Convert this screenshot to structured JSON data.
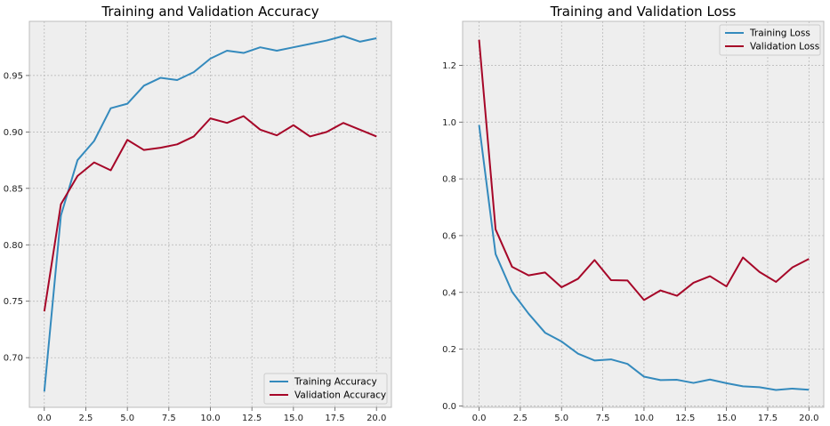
{
  "chart_data": [
    {
      "type": "line",
      "title": "Training and Validation Accuracy",
      "xlabel": "",
      "ylabel": "",
      "xlim": [
        -0.9,
        20.9
      ],
      "ylim": [
        0.656,
        0.998
      ],
      "xticks": [
        0.0,
        2.5,
        5.0,
        7.5,
        10.0,
        12.5,
        15.0,
        17.5,
        20.0
      ],
      "xtick_labels": [
        "0.0",
        "2.5",
        "5.0",
        "7.5",
        "10.0",
        "12.5",
        "15.0",
        "17.5",
        "20.0"
      ],
      "yticks": [
        0.7,
        0.75,
        0.8,
        0.85,
        0.9,
        0.95
      ],
      "ytick_labels": [
        "0.70",
        "0.75",
        "0.80",
        "0.85",
        "0.90",
        "0.95"
      ],
      "grid": true,
      "legend_position": "bottom-right",
      "x": [
        0,
        1,
        2,
        3,
        4,
        5,
        6,
        7,
        8,
        9,
        10,
        11,
        12,
        13,
        14,
        15,
        16,
        17,
        18,
        19,
        20
      ],
      "series": [
        {
          "name": "Training Accuracy",
          "color": "#348abd",
          "values": [
            0.67,
            0.826,
            0.875,
            0.892,
            0.921,
            0.925,
            0.941,
            0.948,
            0.946,
            0.953,
            0.965,
            0.972,
            0.97,
            0.975,
            0.972,
            0.975,
            0.978,
            0.981,
            0.985,
            0.98,
            0.983
          ]
        },
        {
          "name": "Validation Accuracy",
          "color": "#a60628",
          "values": [
            0.741,
            0.836,
            0.861,
            0.873,
            0.866,
            0.893,
            0.884,
            0.886,
            0.889,
            0.896,
            0.912,
            0.908,
            0.914,
            0.902,
            0.897,
            0.906,
            0.896,
            0.9,
            0.908,
            0.902,
            0.896
          ]
        }
      ]
    },
    {
      "type": "line",
      "title": "Training and Validation Loss",
      "xlabel": "",
      "ylabel": "",
      "xlim": [
        -1.0,
        20.9
      ],
      "ylim": [
        -0.005,
        1.355
      ],
      "xticks": [
        0.0,
        2.5,
        5.0,
        7.5,
        10.0,
        12.5,
        15.0,
        17.5,
        20.0
      ],
      "xtick_labels": [
        "0.0",
        "2.5",
        "5.0",
        "7.5",
        "10.0",
        "12.5",
        "15.0",
        "17.5",
        "20.0"
      ],
      "yticks": [
        0.0,
        0.2,
        0.4,
        0.6,
        0.8,
        1.0,
        1.2
      ],
      "ytick_labels": [
        "0.0",
        "0.2",
        "0.4",
        "0.6",
        "0.8",
        "1.0",
        "1.2"
      ],
      "grid": true,
      "legend_position": "top-right",
      "x": [
        0,
        1,
        2,
        3,
        4,
        5,
        6,
        7,
        8,
        9,
        10,
        11,
        12,
        13,
        14,
        15,
        16,
        17,
        18,
        19,
        20
      ],
      "series": [
        {
          "name": "Training Loss",
          "color": "#348abd",
          "values": [
            0.99,
            0.535,
            0.402,
            0.325,
            0.258,
            0.227,
            0.184,
            0.16,
            0.164,
            0.148,
            0.103,
            0.091,
            0.092,
            0.081,
            0.093,
            0.08,
            0.069,
            0.066,
            0.056,
            0.061,
            0.057
          ]
        },
        {
          "name": "Validation Loss",
          "color": "#a60628",
          "values": [
            1.29,
            0.622,
            0.49,
            0.46,
            0.47,
            0.418,
            0.448,
            0.514,
            0.443,
            0.442,
            0.373,
            0.407,
            0.388,
            0.434,
            0.457,
            0.421,
            0.523,
            0.472,
            0.437,
            0.488,
            0.518
          ]
        }
      ]
    }
  ]
}
